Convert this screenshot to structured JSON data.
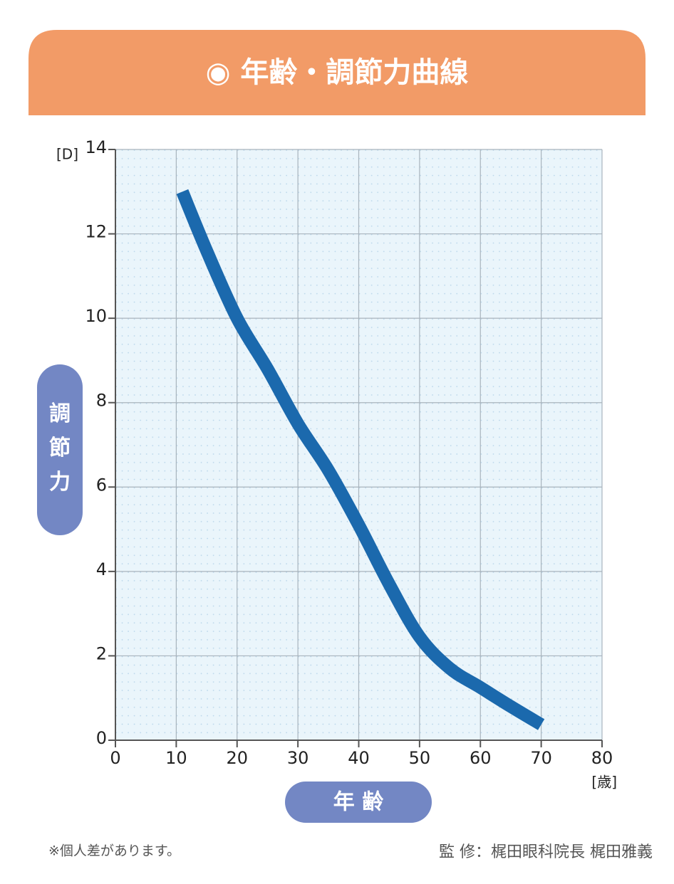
{
  "chart_data": {
    "type": "line",
    "title": "◉ 年齢・調節力曲線",
    "x_label": "年 齢",
    "y_label": "調節力",
    "x_unit": "[歳]",
    "y_unit": "[D]",
    "x": [
      11,
      15,
      20,
      25,
      30,
      35,
      40,
      45,
      50,
      55,
      60,
      65,
      70
    ],
    "values": [
      13.0,
      11.6,
      10.0,
      8.8,
      7.5,
      6.4,
      5.1,
      3.7,
      2.45,
      1.7,
      1.25,
      0.8,
      0.37
    ],
    "color": "#1b69ad",
    "xlim": [
      0,
      80
    ],
    "xticks": [
      0,
      10,
      20,
      30,
      40,
      50,
      60,
      70,
      80
    ],
    "ylim": [
      0,
      14
    ],
    "yticks": [
      0,
      2,
      4,
      6,
      8,
      10,
      12,
      14
    ],
    "grid": true,
    "notes": {
      "left": "※個人差があります。",
      "right": "監 修：梶田眼科院長 梶田雅義"
    }
  }
}
